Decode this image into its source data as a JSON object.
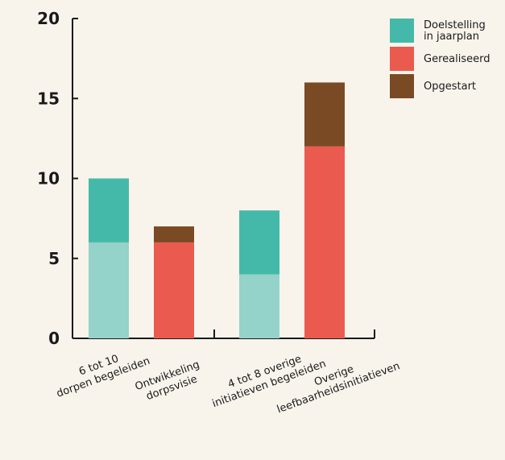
{
  "chart_data": {
    "type": "bar",
    "stacked": true,
    "title": "",
    "xlabel": "",
    "ylabel": "",
    "ylim": [
      0,
      20
    ],
    "yticks": [
      0,
      5,
      10,
      15,
      20
    ],
    "grid": false,
    "legend_position": "top-right",
    "categories": [
      "6 tot 10 dorpen begeleiden",
      "Ontwikkeling dorpsvisie",
      "4 tot 8 overige initiatieven begeleiden",
      "Overige leefbaarheidsinitiatieven"
    ],
    "category_label_lines": [
      [
        "6 tot 10",
        "dorpen begeleiden"
      ],
      [
        "Ontwikkeling",
        "dorpsvisie"
      ],
      [
        "4 tot 8 overige",
        "initiatieven begeleiden"
      ],
      [
        "Overige",
        "leefbaarheidsinitiatieven"
      ]
    ],
    "bars": [
      {
        "segments": [
          {
            "value": 6,
            "color": "#93d3c9"
          },
          {
            "value": 4,
            "color": "#45b9a9"
          }
        ]
      },
      {
        "segments": [
          {
            "value": 6,
            "color": "#eb5a4f"
          },
          {
            "value": 1,
            "color": "#7a4a24"
          }
        ]
      },
      {
        "segments": [
          {
            "value": 4,
            "color": "#93d3c9"
          },
          {
            "value": 4,
            "color": "#45b9a9"
          }
        ]
      },
      {
        "segments": [
          {
            "value": 12,
            "color": "#eb5a4f"
          },
          {
            "value": 4,
            "color": "#7a4a24"
          }
        ]
      }
    ],
    "legend": [
      {
        "lines": [
          "Doelstelling",
          "in jaarplan"
        ],
        "color": "#45b9a9"
      },
      {
        "lines": [
          "Gerealiseerd"
        ],
        "color": "#eb5a4f"
      },
      {
        "lines": [
          "Opgestart"
        ],
        "color": "#7a4a24"
      }
    ],
    "axis_color": "#1a1a1a"
  }
}
